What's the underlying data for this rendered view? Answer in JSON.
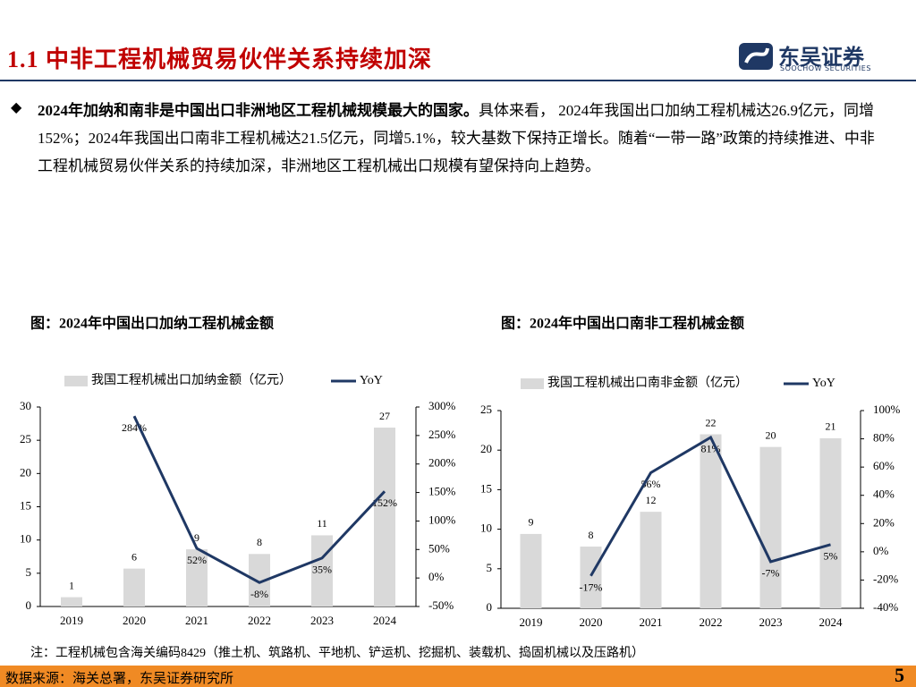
{
  "header": {
    "title": "1.1  中非工程机械贸易伙伴关系持续加深",
    "logo": "东吴证券",
    "logo_sub": "SOOCHOW SECURITIES"
  },
  "body": {
    "bold": "2024年加纳和南非是中国出口非洲地区工程机械规模最大的国家。",
    "text": "具体来看， 2024年我国出口加纳工程机械达26.9亿元，同增152%；2024年我国出口南非工程机械达21.5亿元，同增5.1%，较大基数下保持正增长。随着“一带一路”政策的持续推进、中非工程机械贸易伙伴关系的持续加深，非洲地区工程机械出口规模有望保持向上趋势。"
  },
  "chart_data": [
    {
      "type": "bar-line",
      "title": "图：2024年中国出口加纳工程机械金额",
      "categories": [
        "2019",
        "2020",
        "2021",
        "2022",
        "2023",
        "2024"
      ],
      "series": [
        {
          "name": "我国工程机械出口加纳金额（亿元）",
          "color": "#d9d9d9",
          "values": [
            1.4,
            5.7,
            8.6,
            7.9,
            10.7,
            26.9
          ],
          "value_labels": [
            "1",
            "6",
            "9",
            "8",
            "11",
            "27"
          ]
        },
        {
          "name": "YoY",
          "color": "#1f3864",
          "axis": "y2",
          "values": [
            null,
            284,
            52,
            -8,
            35,
            152
          ],
          "value_labels": [
            null,
            "284%",
            "52%",
            "-8%",
            "35%",
            "152%"
          ]
        }
      ],
      "ylim": [
        0,
        30
      ],
      "yticks": [
        0,
        5,
        10,
        15,
        20,
        25,
        30
      ],
      "y2lim": [
        -50,
        300
      ],
      "y2ticks": [
        {
          "value": -50,
          "label": "-50%"
        },
        {
          "value": 0,
          "label": "0%"
        },
        {
          "value": 50,
          "label": "50%"
        },
        {
          "value": 100,
          "label": "100%"
        },
        {
          "value": 150,
          "label": "150%"
        },
        {
          "value": 200,
          "label": "200%"
        },
        {
          "value": 250,
          "label": "250%"
        },
        {
          "value": 300,
          "label": "300%"
        }
      ]
    },
    {
      "type": "bar-line",
      "title": "图：2024年中国出口南非工程机械金额",
      "categories": [
        "2019",
        "2020",
        "2021",
        "2022",
        "2023",
        "2024"
      ],
      "series": [
        {
          "name": "我国工程机械出口南非金额（亿元）",
          "color": "#d9d9d9",
          "values": [
            9.4,
            7.8,
            12.2,
            22,
            20.4,
            21.5
          ],
          "value_labels": [
            "9",
            "8",
            "12",
            "22",
            "20",
            "21"
          ]
        },
        {
          "name": "YoY",
          "color": "#1f3864",
          "axis": "y2",
          "values": [
            null,
            -17,
            56,
            81,
            -7,
            5.1
          ],
          "value_labels": [
            null,
            "-17%",
            "56%",
            "81%",
            "-7%",
            "5%"
          ]
        }
      ],
      "ylim": [
        0,
        25
      ],
      "yticks": [
        0,
        5,
        10,
        15,
        20,
        25
      ],
      "y2lim": [
        -40,
        100
      ],
      "y2ticks": [
        {
          "value": -40,
          "label": "-40%"
        },
        {
          "value": -20,
          "label": "-20%"
        },
        {
          "value": 0,
          "label": "0%"
        },
        {
          "value": 20,
          "label": "20%"
        },
        {
          "value": 40,
          "label": "40%"
        },
        {
          "value": 60,
          "label": "60%"
        },
        {
          "value": 80,
          "label": "80%"
        },
        {
          "value": 100,
          "label": "100%"
        }
      ]
    }
  ],
  "note": "注：工程机械包含海关编码8429（推土机、筑路机、平地机、铲运机、挖掘机、装载机、捣固机械以及压路机）",
  "source": "数据来源：海关总署，东吴证券研究所",
  "page": "5"
}
